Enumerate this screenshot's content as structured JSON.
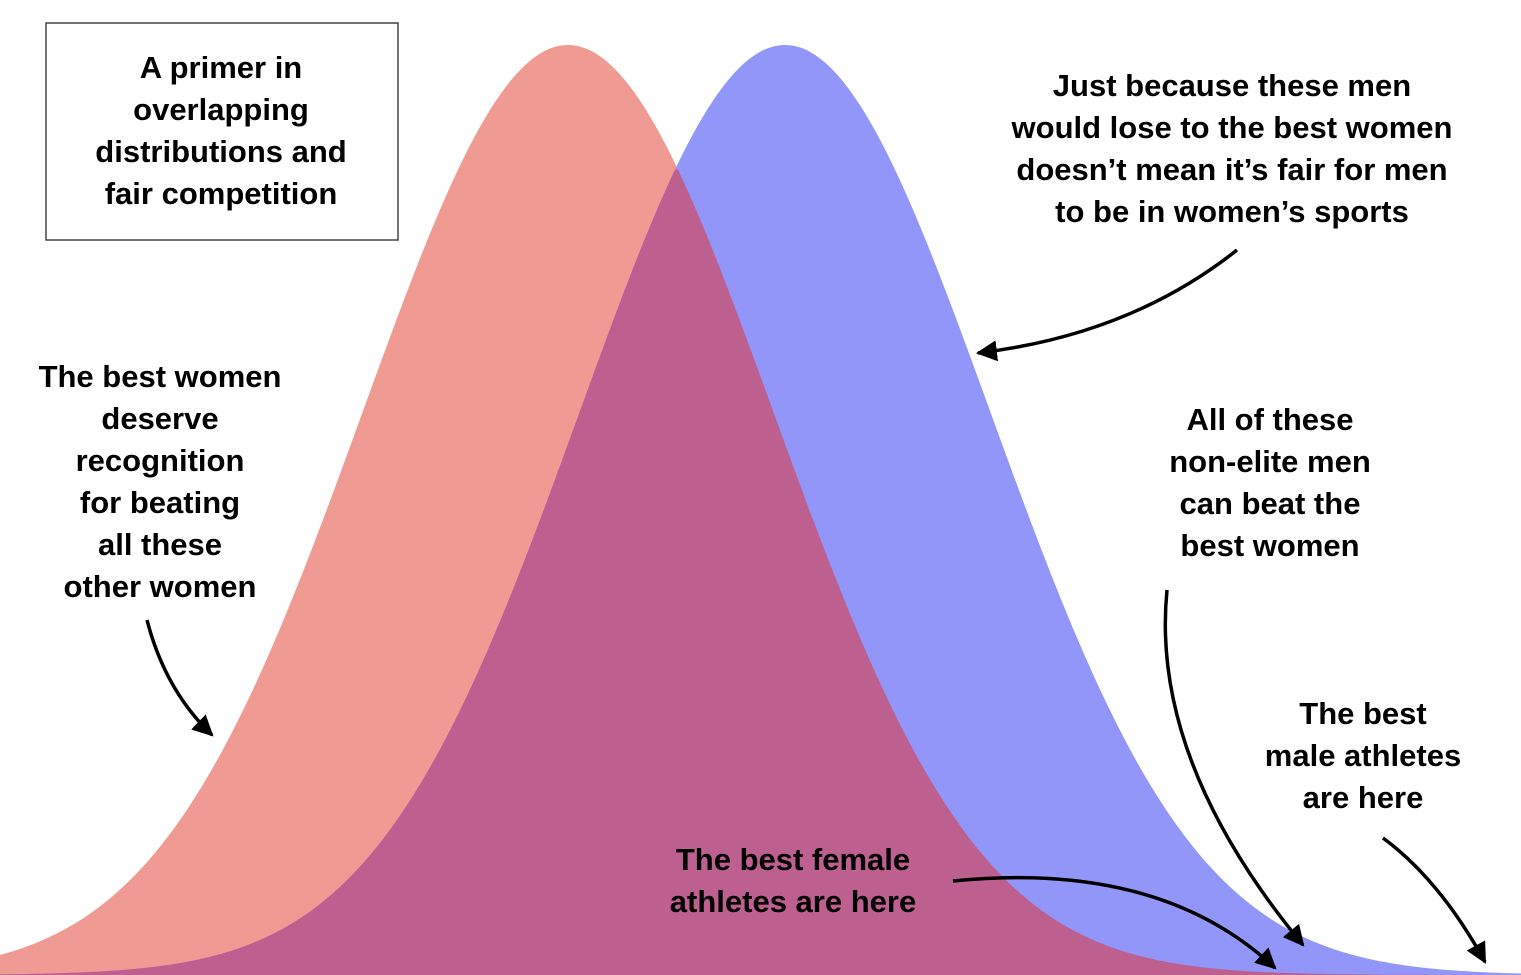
{
  "title_box": {
    "lines": [
      "A primer in",
      "overlapping",
      "distributions and",
      "fair competition"
    ]
  },
  "annotations": [
    {
      "lines": [
        "Just because these men",
        "would lose to the best women",
        "doesn’t mean it’s fair for men",
        "to be in women’s sports"
      ]
    },
    {
      "lines": [
        "The best women",
        "deserve",
        "recognition",
        "for beating",
        "all these",
        "other women"
      ]
    },
    {
      "lines": [
        "All of these",
        "non-elite men",
        "can beat the",
        "best women"
      ]
    },
    {
      "lines": [
        "The best",
        "male athletes",
        "are here"
      ]
    },
    {
      "lines": [
        "The best female",
        "athletes are here"
      ]
    }
  ]
}
